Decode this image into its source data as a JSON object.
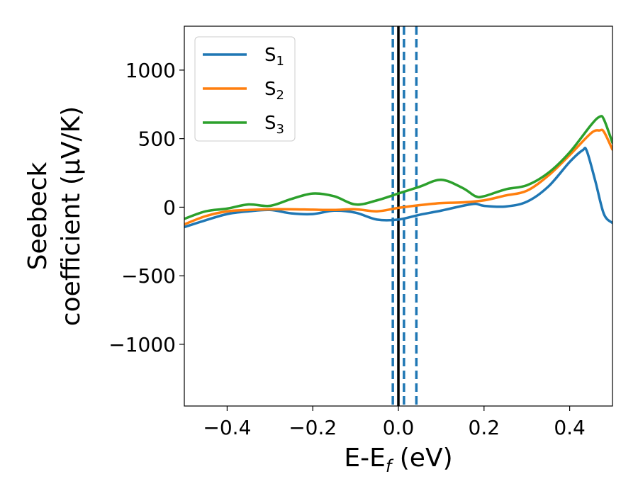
{
  "chart_data": {
    "type": "line",
    "xlabel_main": "E-E",
    "xlabel_sub": "f",
    "xlabel_unit": " (eV)",
    "ylabel_line1": "Seebeck",
    "ylabel_line2": "coefficient  (μV/K)",
    "xlim": [
      -0.5,
      0.5
    ],
    "ylim": [
      -1450,
      1320
    ],
    "xticks": [
      {
        "value": -0.4,
        "label": "−0.4"
      },
      {
        "value": -0.2,
        "label": "−0.2"
      },
      {
        "value": 0.0,
        "label": "0.0"
      },
      {
        "value": 0.2,
        "label": "0.2"
      },
      {
        "value": 0.4,
        "label": "0.4"
      }
    ],
    "yticks": [
      {
        "value": 1000,
        "label": "1000"
      },
      {
        "value": 500,
        "label": "500"
      },
      {
        "value": 0,
        "label": "0"
      },
      {
        "value": -500,
        "label": "−500"
      },
      {
        "value": -1000,
        "label": "−1000"
      }
    ],
    "grid": false,
    "legend_position": "top-left",
    "series": [
      {
        "name": "S",
        "sub": "1",
        "color": "#1f77b4",
        "x": [
          -0.5,
          -0.45,
          -0.4,
          -0.35,
          -0.3,
          -0.25,
          -0.2,
          -0.15,
          -0.1,
          -0.05,
          0.0,
          0.05,
          0.1,
          0.15,
          0.18,
          0.2,
          0.25,
          0.3,
          0.35,
          0.4,
          0.43,
          0.44,
          0.46,
          0.48,
          0.5
        ],
        "y": [
          -145,
          -95,
          -50,
          -30,
          -20,
          -45,
          -50,
          -25,
          -40,
          -90,
          -90,
          -55,
          -25,
          10,
          25,
          10,
          5,
          40,
          150,
          330,
          415,
          410,
          190,
          -50,
          -115
        ]
      },
      {
        "name": "S",
        "sub": "2",
        "color": "#ff7f0e",
        "x": [
          -0.5,
          -0.45,
          -0.4,
          -0.35,
          -0.3,
          -0.25,
          -0.2,
          -0.15,
          -0.1,
          -0.05,
          0.0,
          0.05,
          0.1,
          0.15,
          0.2,
          0.25,
          0.3,
          0.35,
          0.4,
          0.45,
          0.47,
          0.48,
          0.5
        ],
        "y": [
          -125,
          -65,
          -30,
          -20,
          -15,
          -15,
          -18,
          -20,
          -15,
          -30,
          -5,
          15,
          30,
          35,
          50,
          85,
          120,
          230,
          380,
          540,
          560,
          550,
          420
        ]
      },
      {
        "name": "S",
        "sub": "3",
        "color": "#2ca02c",
        "x": [
          -0.5,
          -0.45,
          -0.4,
          -0.35,
          -0.3,
          -0.25,
          -0.2,
          -0.15,
          -0.1,
          -0.05,
          0.0,
          0.05,
          0.1,
          0.15,
          0.18,
          0.2,
          0.25,
          0.3,
          0.35,
          0.4,
          0.45,
          0.47,
          0.48,
          0.5
        ],
        "y": [
          -85,
          -30,
          -10,
          20,
          10,
          60,
          100,
          80,
          20,
          50,
          100,
          150,
          200,
          140,
          80,
          80,
          130,
          160,
          250,
          400,
          600,
          660,
          640,
          470
        ]
      }
    ],
    "vlines": [
      {
        "x": 0.0,
        "color": "#000000",
        "style": "solid"
      },
      {
        "x": -0.013,
        "color": "#1f77b4",
        "style": "dashed"
      },
      {
        "x": 0.013,
        "color": "#1f77b4",
        "style": "dashed"
      },
      {
        "x": 0.042,
        "color": "#1f77b4",
        "style": "dashed"
      }
    ]
  }
}
